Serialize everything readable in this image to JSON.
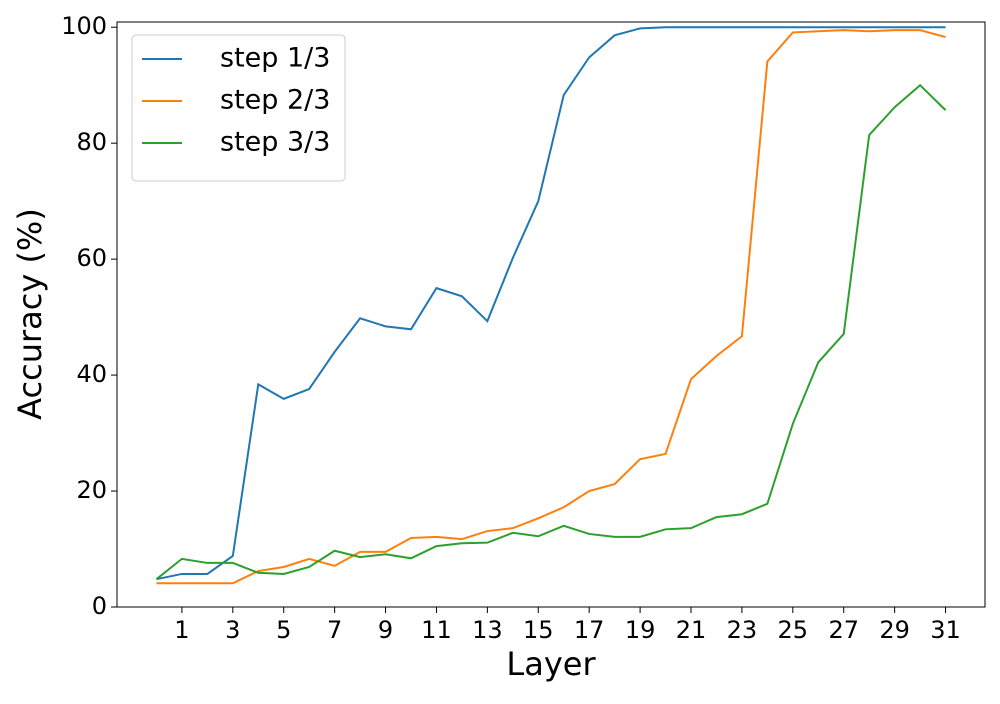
{
  "chart_data": {
    "type": "line",
    "x_label": "Layer",
    "y_label": "Accuracy (%)",
    "x": [
      0,
      1,
      2,
      3,
      4,
      5,
      6,
      7,
      8,
      9,
      10,
      11,
      12,
      13,
      14,
      15,
      16,
      17,
      18,
      19,
      20,
      21,
      22,
      23,
      24,
      25,
      26,
      27,
      28,
      29,
      30,
      31
    ],
    "series": [
      {
        "name": "step 1/3",
        "color": "#1f77b4",
        "values": [
          4.8,
          5.7,
          5.7,
          8.8,
          38.4,
          35.9,
          37.6,
          44,
          49.8,
          48.4,
          47.9,
          55,
          53.6,
          49.3,
          60.2,
          70,
          88.3,
          94.8,
          98.6,
          99.8,
          100,
          100,
          100,
          100,
          100,
          100,
          100,
          100,
          100,
          100,
          100,
          100
        ]
      },
      {
        "name": "step 2/3",
        "color": "#ff7f0e",
        "values": [
          4.1,
          4.1,
          4.1,
          4.1,
          6.2,
          6.9,
          8.3,
          7.1,
          9.5,
          9.5,
          11.9,
          12.1,
          11.7,
          13.1,
          13.6,
          15.3,
          17.2,
          20,
          21.2,
          25.5,
          26.4,
          39.3,
          43.3,
          46.7,
          94.1,
          99.1,
          99.3,
          99.5,
          99.3,
          99.5,
          99.5,
          98.3
        ]
      },
      {
        "name": "step 3/3",
        "color": "#2ca02c",
        "values": [
          4.8,
          8.3,
          7.6,
          7.6,
          5.9,
          5.7,
          6.9,
          9.7,
          8.6,
          9.1,
          8.4,
          10.5,
          11,
          11.1,
          12.8,
          12.2,
          14,
          12.6,
          12.1,
          12.1,
          13.4,
          13.6,
          15.5,
          16,
          17.8,
          31.6,
          42.2,
          47.1,
          81.4,
          86.2,
          90,
          85.7
        ]
      }
    ],
    "xlim": [
      -1.55,
      32.55
    ],
    "xticks": [
      1,
      3,
      5,
      7,
      9,
      11,
      13,
      15,
      17,
      19,
      21,
      23,
      25,
      27,
      29,
      31
    ],
    "ylim": [
      0,
      100.9
    ],
    "yticks": [
      0,
      20,
      40,
      60,
      80,
      100
    ],
    "legend": "upper left"
  }
}
